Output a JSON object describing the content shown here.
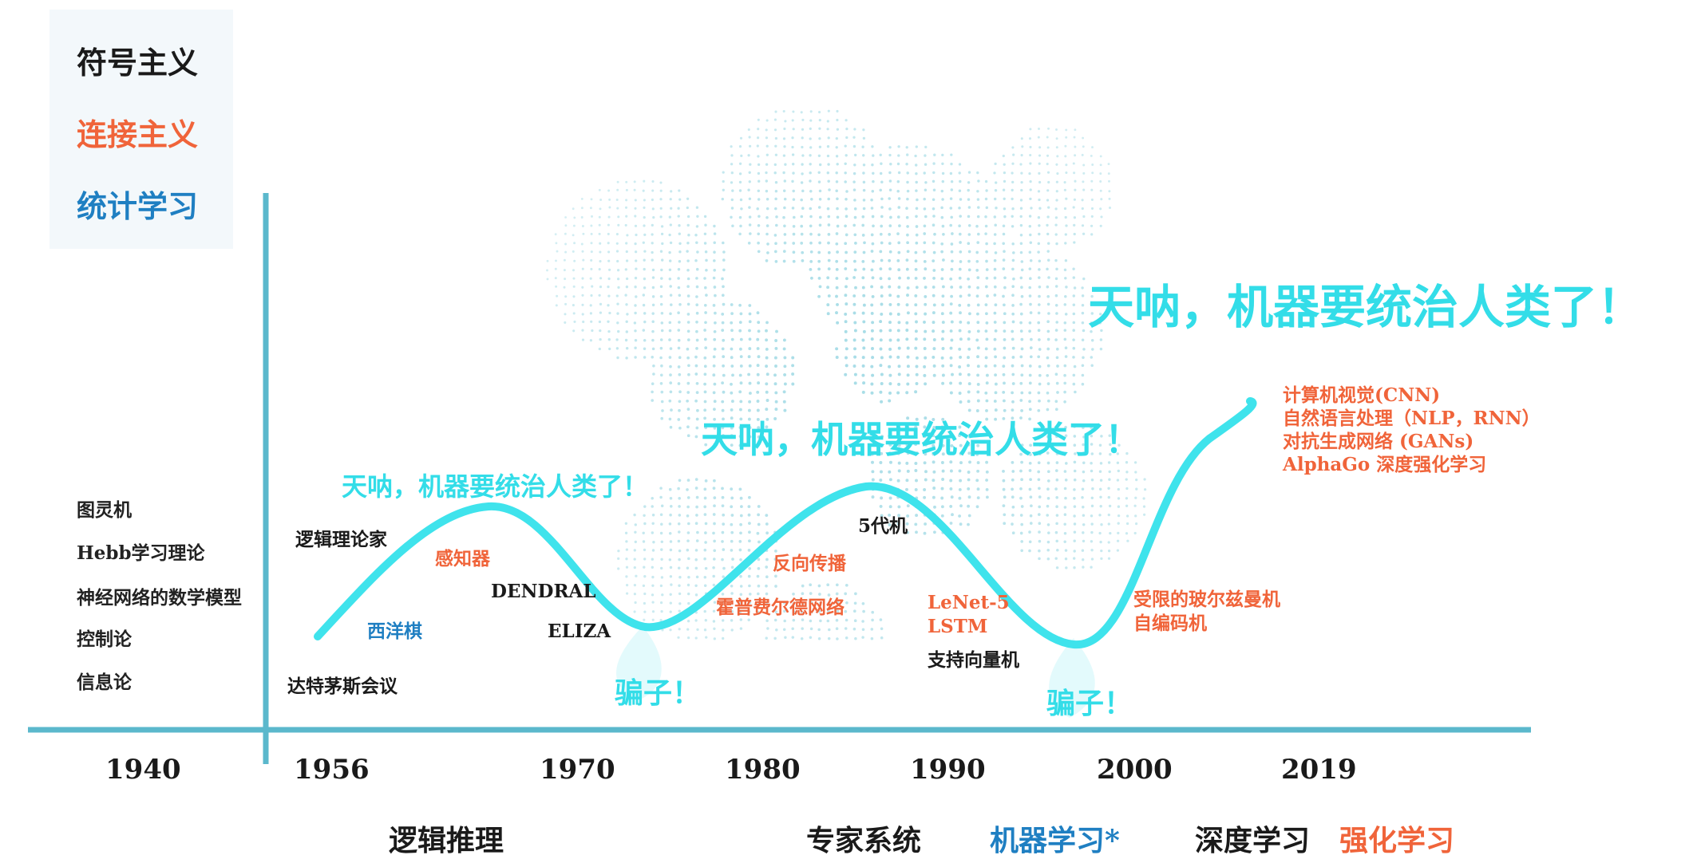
{
  "colors": {
    "symbolism": "#1a1a1a",
    "connectionism": "#f0643a",
    "statistical": "#1f7fc2",
    "curve": "#3fe3ec",
    "axis": "#5bb8cc",
    "hype": "#33dde8"
  },
  "legend": {
    "symbolism": "符号主义",
    "connectionism": "连接主义",
    "statistical": "统计学习"
  },
  "left_events": [
    "图灵机",
    "Hebb学习理论",
    "神经网络的数学模型",
    "控制论",
    "信息论"
  ],
  "years": [
    "1940",
    "1956",
    "1970",
    "1980",
    "1990",
    "2000",
    "2019"
  ],
  "eras": {
    "logic": "逻辑推理",
    "expert": "专家系统",
    "ml": "机器学习*",
    "dl": "深度学习",
    "rl": "强化学习"
  },
  "hype": {
    "first": "天呐，机器要统治人类了！",
    "second": "天呐，机器要统治人类了！",
    "third": "天呐，机器要统治人类了！"
  },
  "troughs": {
    "first": "骗子！",
    "second": "骗子！"
  },
  "events": {
    "logic_theorist": "逻辑理论家",
    "perceptron": "感知器",
    "dendral": "DENDRAL",
    "chess": "西洋棋",
    "eliza": "ELIZA",
    "dartmouth": "达特茅斯会议",
    "fifth_gen": "5代机",
    "backprop": "反向传播",
    "hopfield": "霍普费尔德网络",
    "lenet": "LeNet-5",
    "lstm": "LSTM",
    "svm": "支持向量机",
    "rbm": "受限的玻尔兹曼机",
    "autoencoder": "自编码机",
    "cv": "计算机视觉(CNN)",
    "nlp": "自然语言处理（NLP，RNN）",
    "gan": "对抗生成网络 (GANs)",
    "alphago": "AlphaGo 深度强化学习"
  }
}
